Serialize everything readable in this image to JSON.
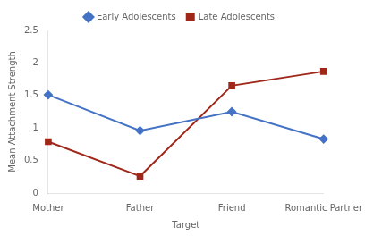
{
  "chart_data": {
    "type": "line",
    "categories": [
      "Mother",
      "Father",
      "Friend",
      "Romantic Partner"
    ],
    "series": [
      {
        "name": "Early Adolescents",
        "color": "#4472C4",
        "values": [
          1.51,
          0.96,
          1.25,
          0.83
        ],
        "marker": "diamond"
      },
      {
        "name": "Late Adolescents",
        "color": "#A0281A",
        "values": [
          0.79,
          0.26,
          1.65,
          1.87
        ],
        "marker": "square"
      }
    ],
    "xlabel": "Target",
    "ylabel": "Mean Attachment Strength",
    "ylim": [
      0,
      2.5
    ],
    "yticks": [
      0,
      0.5,
      1,
      1.5,
      2,
      2.5
    ],
    "grid": false,
    "legend": "top"
  }
}
